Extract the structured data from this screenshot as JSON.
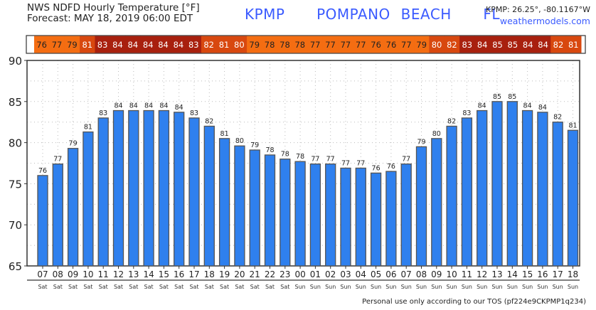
{
  "header": {
    "title": "NWS NDFD Hourly Temperature [°F]",
    "forecast": "Forecast: MAY 18, 2019 06:00 EDT",
    "station": "KPMP   POMPANO BEACH   FL",
    "coords": "KPMP: 26.25°, -80.1167°W",
    "site": "weathermodels.com"
  },
  "footer": "Personal use only according to our TOS (pf224e9CKPMP1q234)",
  "colors": {
    "bar": "#2f80ee",
    "bar_edge": "#555555",
    "warm": "#f46d12",
    "hot": "#d8480f",
    "veryhot": "#a8200e"
  },
  "chart_data": {
    "type": "bar",
    "title": "NWS NDFD Hourly Temperature [°F]",
    "ylabel": "",
    "xlabel": "",
    "ylim": [
      65,
      90
    ],
    "yticks": [
      65,
      70,
      75,
      80,
      85,
      90
    ],
    "grid": true,
    "hours": [
      "07",
      "08",
      "09",
      "10",
      "11",
      "12",
      "13",
      "14",
      "15",
      "16",
      "17",
      "18",
      "19",
      "20",
      "21",
      "22",
      "23",
      "00",
      "01",
      "02",
      "03",
      "04",
      "05",
      "06",
      "07",
      "08",
      "09",
      "10",
      "11",
      "12",
      "13",
      "14",
      "15",
      "16",
      "17",
      "18"
    ],
    "days": [
      "Sat",
      "Sat",
      "Sat",
      "Sat",
      "Sat",
      "Sat",
      "Sat",
      "Sat",
      "Sat",
      "Sat",
      "Sat",
      "Sat",
      "Sat",
      "Sat",
      "Sat",
      "Sat",
      "Sat",
      "Sun",
      "Sun",
      "Sun",
      "Sun",
      "Sun",
      "Sun",
      "Sun",
      "Sun",
      "Sun",
      "Sun",
      "Sun",
      "Sun",
      "Sun",
      "Sun",
      "Sun",
      "Sun",
      "Sun",
      "Sun",
      "Sun"
    ],
    "values": [
      76.0,
      77.4,
      79.3,
      81.3,
      83.0,
      83.9,
      83.9,
      83.9,
      83.9,
      83.7,
      83.0,
      82.0,
      80.5,
      79.6,
      79.1,
      78.5,
      78.0,
      77.7,
      77.4,
      77.4,
      76.9,
      76.9,
      76.3,
      76.5,
      77.4,
      79.5,
      80.5,
      82.0,
      83.0,
      83.9,
      85.0,
      85.0,
      83.9,
      83.7,
      82.5,
      81.5
    ],
    "labels": [
      "76",
      "77",
      "79",
      "81",
      "83",
      "84",
      "84",
      "84",
      "84",
      "84",
      "83",
      "82",
      "81",
      "80",
      "79",
      "78",
      "78",
      "78",
      "77",
      "77",
      "77",
      "77",
      "76",
      "76",
      "77",
      "79",
      "80",
      "82",
      "83",
      "84",
      "85",
      "85",
      "84",
      "84",
      "82",
      "81"
    ]
  }
}
